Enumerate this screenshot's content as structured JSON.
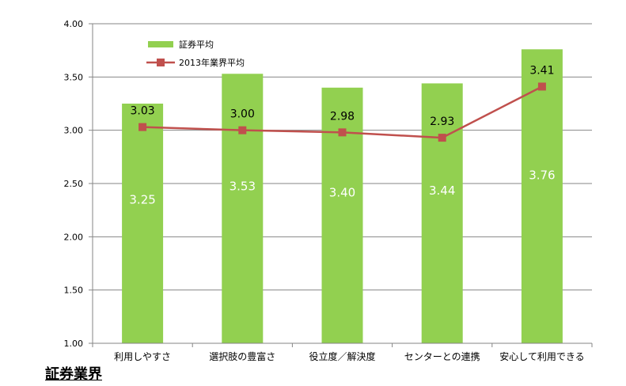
{
  "footer_title": "証券業界",
  "colors": {
    "bar": "#92D050",
    "line": "#C0504D",
    "grid": "#868686"
  },
  "chart_data": {
    "type": "bar",
    "categories": [
      "利用しやすさ",
      "選択肢の豊富さ",
      "役立度／解決度",
      "センターとの連携",
      "安心して利用できる"
    ],
    "series": [
      {
        "name": "証券平均",
        "type": "bar",
        "values": [
          3.25,
          3.53,
          3.4,
          3.44,
          3.76
        ],
        "labels": [
          "3.25",
          "3.53",
          "3.40",
          "3.44",
          "3.76"
        ]
      },
      {
        "name": "2013年業界平均",
        "type": "line",
        "values": [
          3.03,
          3.0,
          2.98,
          2.93,
          3.41
        ],
        "labels": [
          "3.03",
          "3.00",
          "2.98",
          "2.93",
          "3.41"
        ]
      }
    ],
    "ylim": [
      1.0,
      4.0
    ],
    "yticks": [
      "1.00",
      "1.50",
      "2.00",
      "2.50",
      "3.00",
      "3.50",
      "4.00"
    ],
    "grid": true,
    "legend": "top-left"
  }
}
